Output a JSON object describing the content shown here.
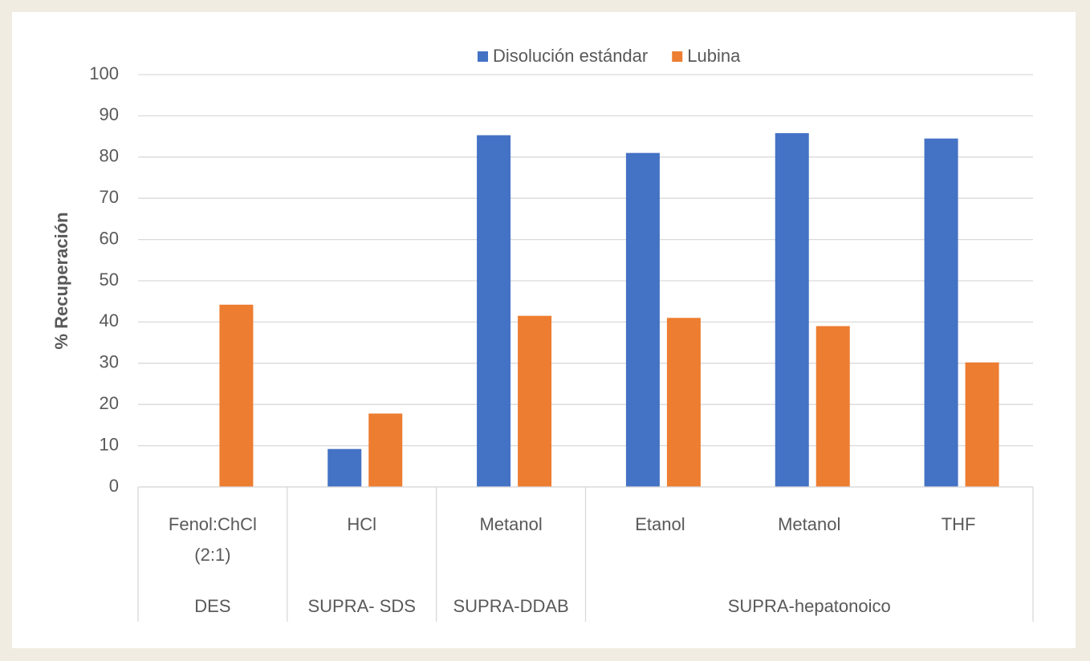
{
  "chart_data": {
    "type": "bar",
    "y_axis_label": "% Recuperación",
    "categories": [
      [
        "Fenol:ChCl",
        "(2:1)"
      ],
      [
        "HCl"
      ],
      [
        "Metanol"
      ],
      [
        "Etanol"
      ],
      [
        "Metanol"
      ],
      [
        "THF"
      ]
    ],
    "groups": [
      {
        "label": "DES",
        "span": 1
      },
      {
        "label": "SUPRA- SDS",
        "span": 1
      },
      {
        "label": "SUPRA-DDAB",
        "span": 1
      },
      {
        "label": "SUPRA-hepatonoico",
        "span": 3
      }
    ],
    "series": [
      {
        "name": "Disolución estándar",
        "color": "#4472c4",
        "values": [
          null,
          9.2,
          85.3,
          81,
          85.8,
          84.5
        ]
      },
      {
        "name": "Lubina",
        "color": "#ed7d31",
        "values": [
          44.2,
          17.8,
          41.5,
          41,
          39,
          30.2
        ]
      }
    ],
    "ylim": [
      0,
      100
    ],
    "yticks": [
      0,
      10,
      20,
      30,
      40,
      50,
      60,
      70,
      80,
      90,
      100
    ],
    "grid": true,
    "legend": "top"
  }
}
